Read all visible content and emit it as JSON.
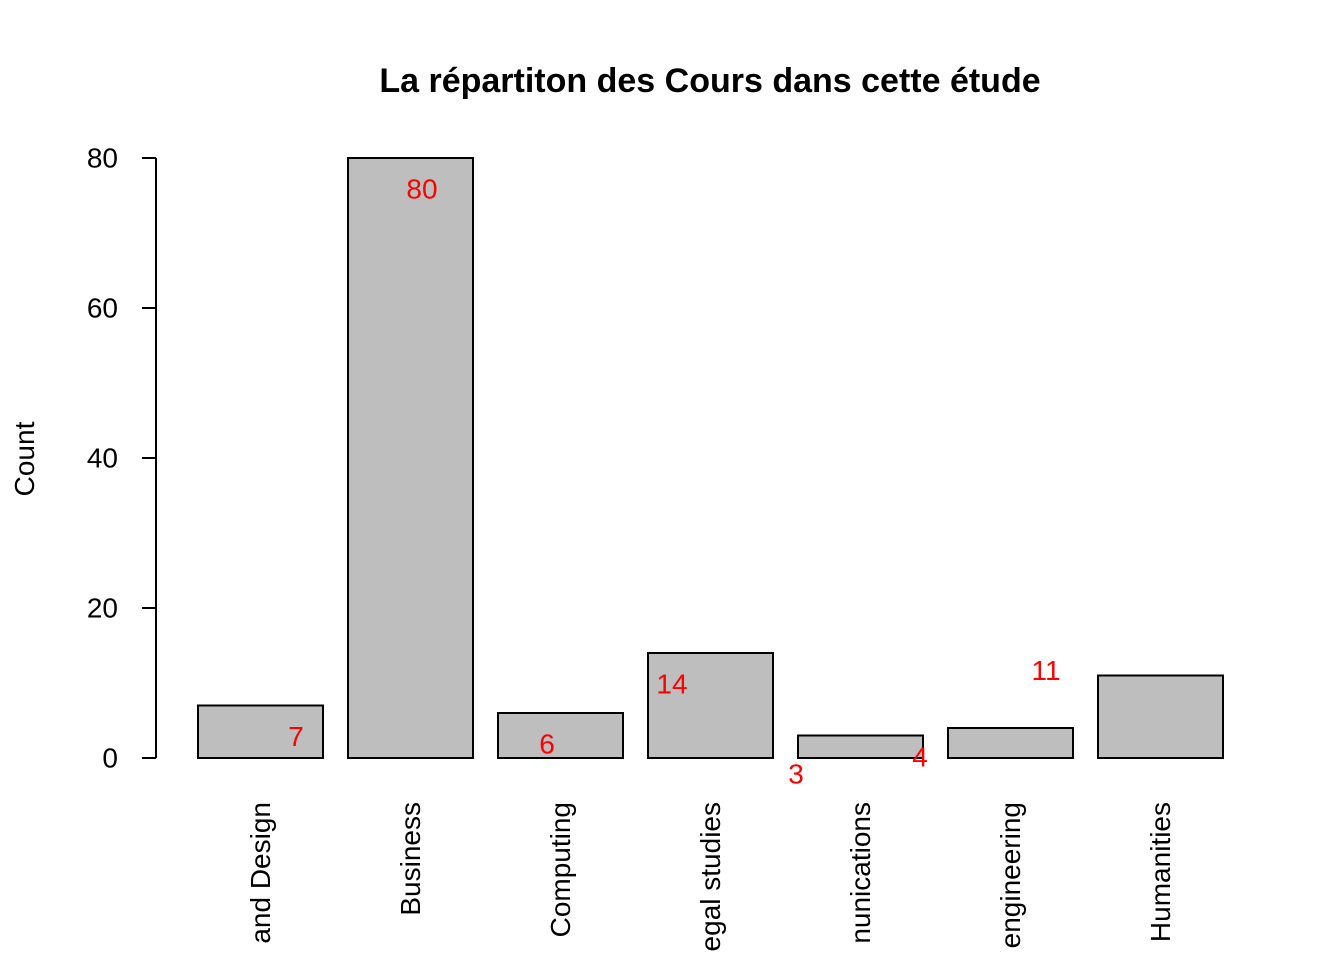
{
  "chart_data": {
    "type": "bar",
    "title": "La répartiton des Cours dans cette étude",
    "ylabel": "Count",
    "xlabel": "",
    "ylim": [
      0,
      80
    ],
    "yticks": [
      0,
      20,
      40,
      60,
      80
    ],
    "categories": [
      "and Design",
      "Business",
      "Computing",
      "egal studies",
      "nunications",
      "engineering",
      "Humanities"
    ],
    "values": [
      7,
      80,
      6,
      14,
      3,
      4,
      11
    ],
    "data_labels": [
      "7",
      "80",
      "6",
      "14",
      "3",
      "4",
      "11"
    ],
    "bar_color": "#bebebe",
    "label_color": "#ff0000",
    "grid": false
  }
}
